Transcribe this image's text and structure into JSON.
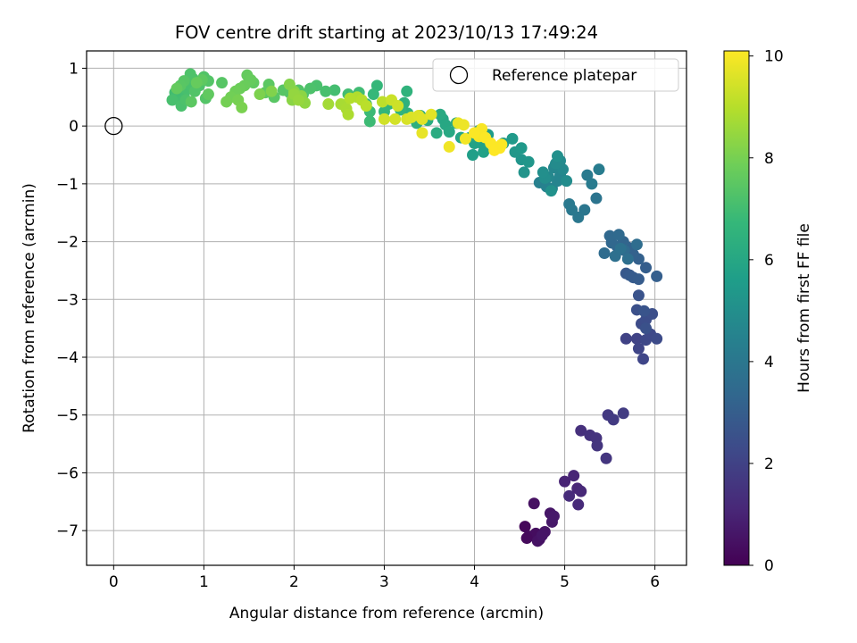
{
  "chart_data": {
    "type": "scatter",
    "title": "FOV centre drift starting at 2023/10/13 17:49:24",
    "xlabel": "Angular distance from reference (arcmin)",
    "ylabel": "Rotation from reference (arcmin)",
    "xlim": [
      -0.3,
      6.35
    ],
    "ylim": [
      -7.6,
      1.3
    ],
    "xticks": [
      0,
      1,
      2,
      3,
      4,
      5,
      6
    ],
    "yticks": [
      1,
      0,
      -1,
      -2,
      -3,
      -4,
      -5,
      -6,
      -7
    ],
    "grid": true,
    "legend": {
      "position": "top-right",
      "entries": [
        "Reference platepar"
      ]
    },
    "reference_point": {
      "x": 0,
      "y": 0,
      "label": "Reference platepar"
    },
    "colorbar": {
      "label": "Hours from first FF file",
      "min": 0,
      "max": 10.1,
      "ticks": [
        0,
        2,
        4,
        6,
        8,
        10
      ],
      "colormap": "viridis",
      "stops": [
        "#440154",
        "#482878",
        "#3e4989",
        "#31688e",
        "#26828e",
        "#1f9e89",
        "#35b779",
        "#6ece58",
        "#b5de2b",
        "#fde725"
      ]
    },
    "points": [
      [
        4.56,
        -6.93,
        0.2
      ],
      [
        4.6,
        -7.1,
        0.3
      ],
      [
        4.68,
        -7.05,
        0.35
      ],
      [
        4.72,
        -7.15,
        0.4
      ],
      [
        4.66,
        -6.53,
        0.45
      ],
      [
        4.78,
        -7.02,
        0.55
      ],
      [
        4.84,
        -6.7,
        0.6
      ],
      [
        4.86,
        -6.85,
        0.65
      ],
      [
        4.88,
        -6.75,
        0.7
      ],
      [
        4.58,
        -7.13,
        0.25
      ],
      [
        4.7,
        -7.18,
        0.5
      ],
      [
        4.75,
        -7.08,
        0.58
      ],
      [
        5.0,
        -6.15,
        1.0
      ],
      [
        5.1,
        -6.05,
        1.05
      ],
      [
        5.14,
        -6.27,
        1.1
      ],
      [
        5.18,
        -6.32,
        1.15
      ],
      [
        5.15,
        -6.55,
        1.2
      ],
      [
        5.05,
        -6.4,
        1.25
      ],
      [
        5.18,
        -5.27,
        1.4
      ],
      [
        5.28,
        -5.35,
        1.45
      ],
      [
        5.35,
        -5.4,
        1.5
      ],
      [
        5.36,
        -5.53,
        1.55
      ],
      [
        5.46,
        -5.75,
        1.6
      ],
      [
        5.48,
        -5.0,
        1.7
      ],
      [
        5.54,
        -5.08,
        1.75
      ],
      [
        5.65,
        -4.97,
        1.8
      ],
      [
        5.68,
        -3.68,
        2.0
      ],
      [
        5.8,
        -3.68,
        2.05
      ],
      [
        5.82,
        -3.85,
        2.1
      ],
      [
        5.87,
        -4.03,
        2.15
      ],
      [
        5.9,
        -3.7,
        2.2
      ],
      [
        5.95,
        -3.6,
        2.25
      ],
      [
        6.02,
        -3.68,
        2.3
      ],
      [
        5.85,
        -3.42,
        2.35
      ],
      [
        5.9,
        -3.35,
        2.4
      ],
      [
        5.97,
        -3.25,
        2.45
      ],
      [
        5.8,
        -3.18,
        2.5
      ],
      [
        5.9,
        -3.5,
        2.55
      ],
      [
        5.82,
        -2.93,
        2.6
      ],
      [
        5.88,
        -3.2,
        2.65
      ],
      [
        5.68,
        -2.55,
        2.8
      ],
      [
        5.72,
        -2.58,
        2.85
      ],
      [
        5.76,
        -2.62,
        2.9
      ],
      [
        5.82,
        -2.65,
        2.95
      ],
      [
        5.9,
        -2.45,
        3.0
      ],
      [
        6.02,
        -2.6,
        3.05
      ],
      [
        5.82,
        -2.3,
        3.1
      ],
      [
        5.76,
        -2.22,
        3.15
      ],
      [
        5.7,
        -2.1,
        3.2
      ],
      [
        5.65,
        -2.0,
        3.25
      ],
      [
        5.58,
        -2.08,
        3.3
      ],
      [
        5.52,
        -2.02,
        3.35
      ],
      [
        5.5,
        -1.9,
        3.4
      ],
      [
        5.6,
        -1.88,
        3.45
      ],
      [
        5.66,
        -2.15,
        3.5
      ],
      [
        5.44,
        -2.2,
        3.55
      ],
      [
        5.8,
        -2.05,
        3.6
      ],
      [
        5.7,
        -2.3,
        3.65
      ],
      [
        5.56,
        -2.25,
        3.7
      ],
      [
        5.62,
        -2.12,
        3.75
      ],
      [
        5.35,
        -1.25,
        3.9
      ],
      [
        5.22,
        -1.45,
        3.95
      ],
      [
        5.15,
        -1.58,
        4.0
      ],
      [
        5.08,
        -1.45,
        4.05
      ],
      [
        5.05,
        -1.35,
        4.1
      ],
      [
        5.25,
        -0.85,
        4.15
      ],
      [
        5.3,
        -1.0,
        4.2
      ],
      [
        5.38,
        -0.75,
        4.25
      ],
      [
        4.72,
        -0.98,
        4.4
      ],
      [
        4.8,
        -1.05,
        4.45
      ],
      [
        4.86,
        -1.08,
        4.5
      ],
      [
        4.92,
        -0.95,
        4.55
      ],
      [
        4.95,
        -0.85,
        4.6
      ],
      [
        4.88,
        -0.72,
        4.65
      ],
      [
        4.82,
        -0.88,
        4.7
      ],
      [
        4.98,
        -0.75,
        4.75
      ],
      [
        4.95,
        -0.6,
        4.8
      ],
      [
        4.9,
        -0.65,
        4.85
      ],
      [
        5.02,
        -0.95,
        4.9
      ],
      [
        4.78,
        -0.9,
        4.95
      ],
      [
        4.76,
        -0.8,
        5.0
      ],
      [
        4.92,
        -0.52,
        5.05
      ],
      [
        4.85,
        -1.12,
        5.1
      ],
      [
        4.55,
        -0.8,
        5.2
      ],
      [
        4.52,
        -0.58,
        5.25
      ],
      [
        4.6,
        -0.62,
        5.3
      ],
      [
        4.45,
        -0.45,
        5.35
      ],
      [
        4.52,
        -0.38,
        5.4
      ],
      [
        4.42,
        -0.22,
        5.45
      ],
      [
        4.32,
        -0.3,
        5.5
      ],
      [
        4.15,
        -0.15,
        5.55
      ],
      [
        4.05,
        -0.08,
        5.6
      ],
      [
        3.98,
        -0.5,
        5.65
      ],
      [
        4.08,
        -0.3,
        5.7
      ],
      [
        4.1,
        -0.45,
        5.75
      ],
      [
        4.0,
        -0.3,
        5.8
      ],
      [
        3.95,
        -0.2,
        5.85
      ],
      [
        3.85,
        -0.2,
        5.9
      ],
      [
        3.65,
        0.12,
        5.95
      ],
      [
        3.68,
        0.02,
        6.0
      ],
      [
        3.72,
        -0.1,
        6.05
      ],
      [
        3.62,
        0.2,
        6.1
      ],
      [
        3.8,
        0.05,
        6.15
      ],
      [
        3.58,
        -0.12,
        6.2
      ],
      [
        3.48,
        0.1,
        6.25
      ],
      [
        3.4,
        0.18,
        6.3
      ],
      [
        3.36,
        0.05,
        6.35
      ],
      [
        3.26,
        0.22,
        6.4
      ],
      [
        3.22,
        0.4,
        6.45
      ],
      [
        3.25,
        0.6,
        6.5
      ],
      [
        3.18,
        0.28,
        6.55
      ],
      [
        3.05,
        0.38,
        6.6
      ],
      [
        3.0,
        0.25,
        6.65
      ],
      [
        2.92,
        0.7,
        6.7
      ],
      [
        2.88,
        0.55,
        6.75
      ],
      [
        2.8,
        0.38,
        6.8
      ],
      [
        2.84,
        0.25,
        6.85
      ],
      [
        2.84,
        0.08,
        6.9
      ],
      [
        2.72,
        0.58,
        6.95
      ],
      [
        2.6,
        0.55,
        7.0
      ],
      [
        2.45,
        0.62,
        7.05
      ],
      [
        2.35,
        0.6,
        7.1
      ],
      [
        2.25,
        0.7,
        7.15
      ],
      [
        2.18,
        0.65,
        7.2
      ],
      [
        2.1,
        0.55,
        7.25
      ],
      [
        2.05,
        0.62,
        7.3
      ],
      [
        1.95,
        0.58,
        7.35
      ],
      [
        1.88,
        0.62,
        7.4
      ],
      [
        1.78,
        0.5,
        7.45
      ],
      [
        1.72,
        0.72,
        7.5
      ],
      [
        1.68,
        0.58,
        7.55
      ],
      [
        1.55,
        0.75,
        7.6
      ],
      [
        1.48,
        0.88,
        7.65
      ],
      [
        1.52,
        0.8,
        7.7
      ],
      [
        1.45,
        0.7,
        7.75
      ],
      [
        1.4,
        0.65,
        7.8
      ],
      [
        1.35,
        0.6,
        7.85
      ],
      [
        1.3,
        0.5,
        7.9
      ],
      [
        1.25,
        0.42,
        7.95
      ],
      [
        1.38,
        0.45,
        8.0
      ],
      [
        1.42,
        0.32,
        8.05
      ],
      [
        1.2,
        0.75,
        7.4
      ],
      [
        1.05,
        0.78,
        7.35
      ],
      [
        1.0,
        0.85,
        7.3
      ],
      [
        0.95,
        0.7,
        7.25
      ],
      [
        0.88,
        0.82,
        7.2
      ],
      [
        0.82,
        0.68,
        7.15
      ],
      [
        0.78,
        0.55,
        7.1
      ],
      [
        0.72,
        0.5,
        7.05
      ],
      [
        0.68,
        0.58,
        7.0
      ],
      [
        0.65,
        0.45,
        7.1
      ],
      [
        0.75,
        0.35,
        7.15
      ],
      [
        0.8,
        0.45,
        7.2
      ],
      [
        0.85,
        0.9,
        7.25
      ],
      [
        0.9,
        0.6,
        7.3
      ],
      [
        1.02,
        0.48,
        7.35
      ],
      [
        0.78,
        0.78,
        7.4
      ],
      [
        0.74,
        0.7,
        7.45
      ],
      [
        0.86,
        0.42,
        7.5
      ],
      [
        0.98,
        0.8,
        7.55
      ],
      [
        1.05,
        0.55,
        7.6
      ],
      [
        0.7,
        0.65,
        7.65
      ],
      [
        0.92,
        0.75,
        7.7
      ],
      [
        1.62,
        0.55,
        8.1
      ],
      [
        1.75,
        0.6,
        8.15
      ],
      [
        1.95,
        0.72,
        8.2
      ],
      [
        2.0,
        0.6,
        8.25
      ],
      [
        1.98,
        0.45,
        8.3
      ],
      [
        2.08,
        0.52,
        8.35
      ],
      [
        2.12,
        0.4,
        8.4
      ],
      [
        2.0,
        0.55,
        8.45
      ],
      [
        2.05,
        0.45,
        8.5
      ],
      [
        2.38,
        0.38,
        8.7
      ],
      [
        2.52,
        0.38,
        8.75
      ],
      [
        2.58,
        0.3,
        8.8
      ],
      [
        2.6,
        0.2,
        8.85
      ],
      [
        2.7,
        0.5,
        8.9
      ],
      [
        2.62,
        0.48,
        8.95
      ],
      [
        2.75,
        0.45,
        9.0
      ],
      [
        2.8,
        0.35,
        9.05
      ],
      [
        2.98,
        0.42,
        9.1
      ],
      [
        3.08,
        0.45,
        9.3
      ],
      [
        3.15,
        0.35,
        9.35
      ],
      [
        3.0,
        0.12,
        9.4
      ],
      [
        3.12,
        0.12,
        9.45
      ],
      [
        3.25,
        0.12,
        9.5
      ],
      [
        3.3,
        0.15,
        9.55
      ],
      [
        3.38,
        0.18,
        9.6
      ],
      [
        3.42,
        0.12,
        9.65
      ],
      [
        3.52,
        0.2,
        9.7
      ],
      [
        3.42,
        -0.12,
        9.75
      ],
      [
        3.82,
        0.05,
        9.8
      ],
      [
        3.88,
        0.02,
        9.85
      ],
      [
        3.72,
        -0.36,
        9.9
      ],
      [
        3.9,
        -0.22,
        9.95
      ],
      [
        4.05,
        -0.18,
        10.0
      ],
      [
        4.08,
        -0.05,
        10.02
      ],
      [
        4.12,
        -0.2,
        10.05
      ],
      [
        4.18,
        -0.3,
        10.08
      ],
      [
        4.22,
        -0.42,
        10.1
      ],
      [
        4.28,
        -0.38,
        10.1
      ],
      [
        4.0,
        -0.12,
        10.05
      ],
      [
        4.3,
        -0.32,
        10.08
      ]
    ]
  }
}
